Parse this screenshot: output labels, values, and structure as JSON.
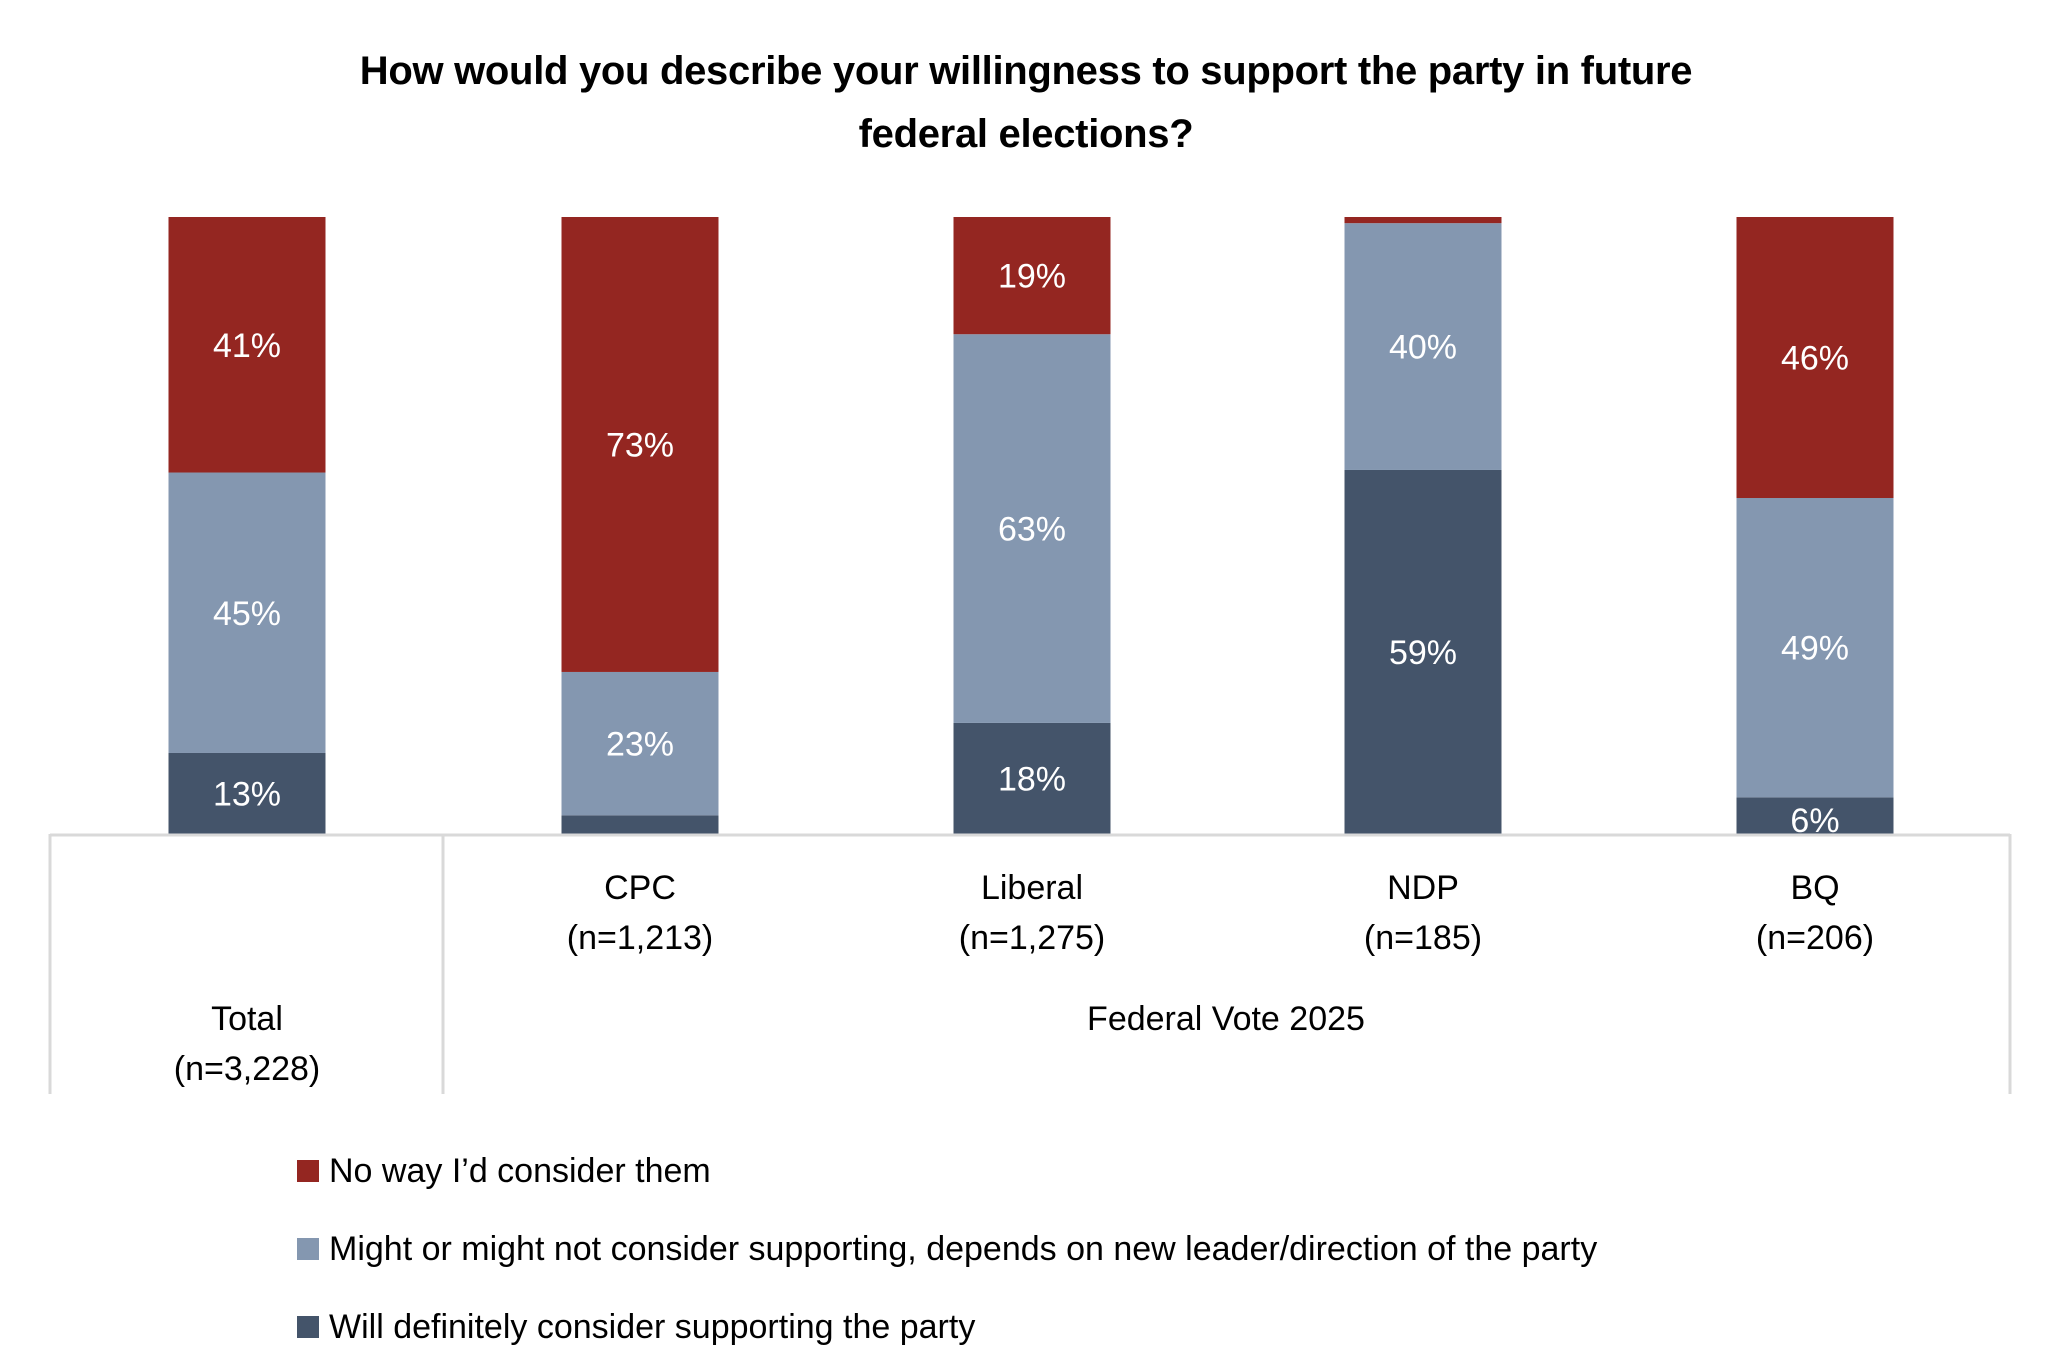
{
  "chart_data": {
    "type": "bar",
    "stacked": true,
    "percent_stacked": true,
    "title": "How would you describe your willingness to support the party in future federal elections?",
    "title_lines": [
      "How would you describe your willingness to support the party in future",
      "federal elections?"
    ],
    "xlabel": "",
    "ylabel": "",
    "ylim": [
      0,
      100
    ],
    "grid": false,
    "legend_position": "bottom-left",
    "group_label": "Federal Vote 2025",
    "categories": [
      {
        "name": "Total",
        "n": "(n=3,228)",
        "group": null
      },
      {
        "name": "CPC",
        "n": "(n=1,213)",
        "group": "Federal Vote 2025"
      },
      {
        "name": "Liberal",
        "n": "(n=1,275)",
        "group": "Federal Vote 2025"
      },
      {
        "name": "NDP",
        "n": "(n=185)",
        "group": "Federal Vote 2025"
      },
      {
        "name": "BQ",
        "n": "(n=206)",
        "group": "Federal Vote 2025"
      }
    ],
    "series": [
      {
        "name": "Will definitely consider supporting the party",
        "color": "#44546a",
        "values": [
          13,
          3,
          18,
          59,
          6
        ],
        "labels": [
          "13%",
          "",
          "18%",
          "59%",
          "6%"
        ]
      },
      {
        "name": "Might or might not consider supporting, depends on new leader/direction of the party",
        "color": "#8497b0",
        "values": [
          45,
          23,
          63,
          40,
          49
        ],
        "labels": [
          "45%",
          "23%",
          "63%",
          "40%",
          "49%"
        ]
      },
      {
        "name": "No way I’d consider them",
        "color": "#942621",
        "values": [
          41,
          73,
          19,
          1,
          46
        ],
        "labels": [
          "41%",
          "73%",
          "19%",
          "",
          "46%"
        ]
      }
    ],
    "legend_order": [
      2,
      1,
      0
    ]
  },
  "colors": {
    "axis_line": "#d9d9d9",
    "label_text": "#ffffff"
  }
}
